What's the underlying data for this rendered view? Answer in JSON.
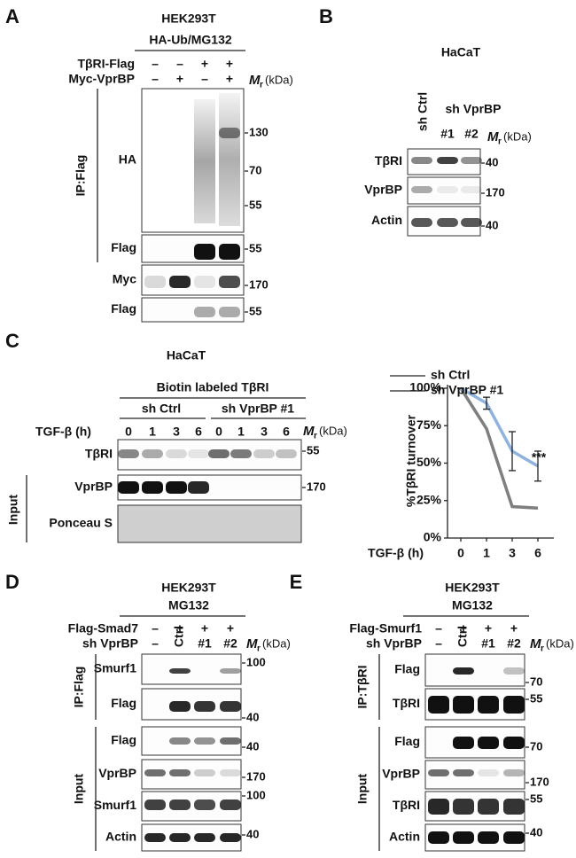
{
  "panel_labels": {
    "a": "A",
    "b": "B",
    "c": "C",
    "d": "D",
    "e": "E"
  },
  "mr": {
    "symbol": "M",
    "subscript": "r",
    "unit": "(kDa)"
  },
  "panel_a": {
    "cell_line": "HEK293T",
    "treatment": "HA-Ub/MG132",
    "conditions": [
      {
        "label": "TβRI-Flag",
        "lanes": [
          "–",
          "–",
          "+",
          "+"
        ]
      },
      {
        "label": "Myc-VprBP",
        "lanes": [
          "–",
          "+",
          "–",
          "+"
        ]
      }
    ],
    "ip_label": "IP:Flag",
    "blots": [
      {
        "label": "HA",
        "markers": [
          "130",
          "70",
          "55"
        ]
      },
      {
        "label": "Flag",
        "markers": [
          "55"
        ]
      },
      {
        "label": "Myc",
        "markers": [
          "170"
        ]
      },
      {
        "label": "Flag",
        "markers": [
          "55"
        ]
      }
    ]
  },
  "panel_b": {
    "cell_line": "HaCaT",
    "control": "sh Ctrl",
    "knockdown": "sh VprBP",
    "lanes": [
      "#1",
      "#2"
    ],
    "blots": [
      {
        "label": "TβRI",
        "markers": [
          "40"
        ]
      },
      {
        "label": "VprBP",
        "markers": [
          "170"
        ]
      },
      {
        "label": "Actin",
        "markers": [
          "40"
        ]
      }
    ]
  },
  "panel_c": {
    "cell_line": "HaCaT",
    "probe": "Biotin labeled TβRI",
    "groups": [
      "sh Ctrl",
      "sh VprBP #1"
    ],
    "time_label": "TGF-β (h)",
    "timepoints": [
      "0",
      "1",
      "3",
      "6"
    ],
    "input_label": "Input",
    "blots": [
      {
        "label": "TβRI",
        "markers": [
          "55"
        ]
      },
      {
        "label": "VprBP",
        "markers": [
          "170"
        ]
      },
      {
        "label": "Ponceau S",
        "markers": []
      }
    ]
  },
  "chart_data": {
    "type": "line",
    "categories": [
      "0",
      "1",
      "3",
      "6"
    ],
    "x_label": "TGF-β (h)",
    "y_label": "%TβRI turnover",
    "ylim": [
      0,
      100
    ],
    "yticks": [
      {
        "value": 0,
        "label": "0%"
      },
      {
        "value": 25,
        "label": "25%"
      },
      {
        "value": 50,
        "label": "50%"
      },
      {
        "value": 75,
        "label": "75%"
      },
      {
        "value": 100,
        "label": "100%"
      }
    ],
    "series": [
      {
        "name": "sh Ctrl",
        "color": "#7f7f7f",
        "values": [
          100,
          73,
          21,
          20
        ]
      },
      {
        "name": "sh VprBP #1",
        "color": "#8fb3de",
        "values": [
          100,
          90,
          58,
          48
        ],
        "errors": [
          0,
          4,
          13,
          10
        ]
      }
    ],
    "annotation": "***"
  },
  "panel_d": {
    "cell_line": "HEK293T",
    "treatment": "MG132",
    "conditions": [
      {
        "label": "Flag-Smad7",
        "lanes": [
          "–",
          "+",
          "+",
          "+"
        ]
      },
      {
        "label": "sh VprBP",
        "lanes": [
          "–",
          "Ctrl",
          "#1",
          "#2"
        ]
      }
    ],
    "ip_label": "IP:Flag",
    "input_label": "Input",
    "blots": [
      {
        "label": "Smurf1",
        "markers": [
          "100"
        ]
      },
      {
        "label": "Flag",
        "markers": [
          "40"
        ]
      },
      {
        "label": "Flag",
        "markers": [
          "40"
        ]
      },
      {
        "label": "VprBP",
        "markers": [
          "170"
        ]
      },
      {
        "label": "Smurf1",
        "markers": [
          "100"
        ]
      },
      {
        "label": "Actin",
        "markers": [
          "40"
        ]
      }
    ]
  },
  "panel_e": {
    "cell_line": "HEK293T",
    "treatment": "MG132",
    "conditions": [
      {
        "label": "Flag-Smurf1",
        "lanes": [
          "–",
          "+",
          "+",
          "+"
        ]
      },
      {
        "label": "sh VprBP",
        "lanes": [
          "–",
          "Ctrl",
          "#1",
          "#2"
        ]
      }
    ],
    "ip_label": "IP:TβRI",
    "input_label": "Input",
    "blots": [
      {
        "label": "Flag",
        "markers": [
          "70"
        ]
      },
      {
        "label": "TβRI",
        "markers": [
          "55"
        ]
      },
      {
        "label": "Flag",
        "markers": [
          "70"
        ]
      },
      {
        "label": "VprBP",
        "markers": [
          "170"
        ]
      },
      {
        "label": "TβRI",
        "markers": [
          "55"
        ]
      },
      {
        "label": "Actin",
        "markers": [
          "40"
        ]
      }
    ]
  }
}
